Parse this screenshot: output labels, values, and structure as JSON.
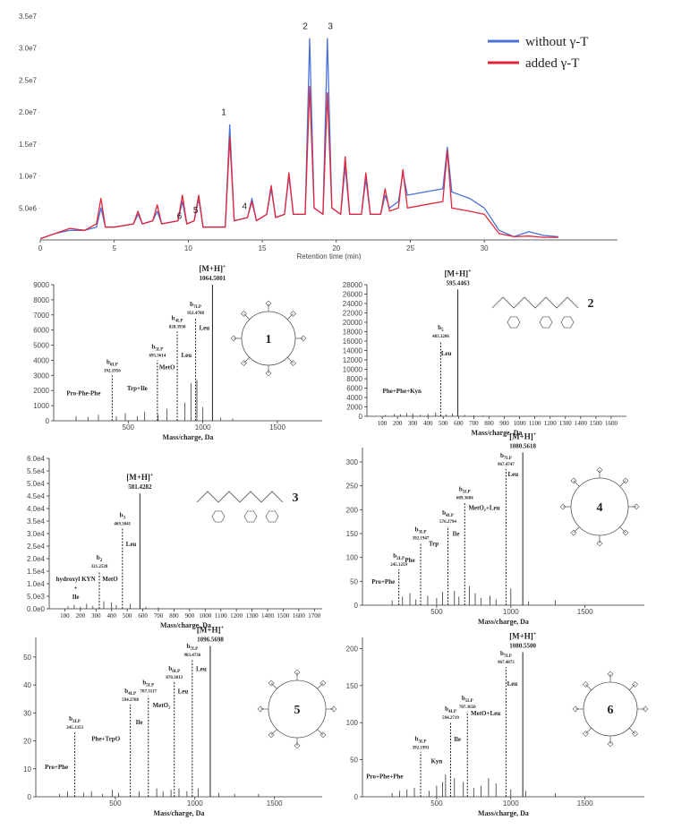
{
  "chart_data": [
    {
      "type": "line",
      "x_label": "Retention time (min)",
      "legend": "upper right",
      "xlim": [
        0,
        39
      ],
      "xticks": [
        0,
        5,
        10,
        15,
        20,
        25,
        30
      ],
      "ylim": [
        0,
        35000000.0
      ],
      "yticks": [
        {
          "value": 5000000.0,
          "label": "5.0e6"
        },
        {
          "value": 10000000.0,
          "label": "1.0e7"
        },
        {
          "value": 15000000.0,
          "label": "1.5e7"
        },
        {
          "value": 20000000.0,
          "label": "2.0e7"
        },
        {
          "value": 25000000.0,
          "label": "2.5e7"
        },
        {
          "value": 30000000.0,
          "label": "3.0e7"
        },
        {
          "value": 35000000.0,
          "label": "3.5e7"
        }
      ],
      "x": [
        0,
        1,
        2,
        3,
        3.8,
        4.1,
        4.4,
        5,
        6.3,
        6.6,
        6.9,
        7.6,
        7.9,
        8.2,
        9.3,
        9.6,
        9.9,
        10.4,
        10.7,
        11,
        12.5,
        12.8,
        13.1,
        14,
        14.3,
        14.6,
        15.3,
        15.6,
        15.9,
        16.5,
        16.8,
        17.1,
        17.9,
        18.2,
        18.5,
        19.1,
        19.4,
        19.7,
        20.3,
        20.6,
        20.9,
        21.7,
        22,
        22.3,
        23,
        23.3,
        23.6,
        24.2,
        24.5,
        24.8,
        26,
        27.2,
        27.5,
        27.8,
        29,
        30,
        31,
        32,
        33,
        34,
        35
      ],
      "series": [
        {
          "name": "without γ-T",
          "color": "#4a72d6",
          "values": [
            200000.0,
            1000000.0,
            1500000.0,
            1500000.0,
            2000000.0,
            5000000.0,
            2000000.0,
            2000000.0,
            2500000.0,
            4000000.0,
            2500000.0,
            3000000.0,
            4500000.0,
            2500000.0,
            3000000.0,
            6000000.0,
            2500000.0,
            3000000.0,
            6500000.0,
            2000000.0,
            2000000.0,
            18000000.0,
            3000000.0,
            3500000.0,
            6500000.0,
            3000000.0,
            4000000.0,
            8000000.0,
            3500000.0,
            4000000.0,
            10000000.0,
            4000000.0,
            4000000.0,
            31500000.0,
            5000000.0,
            4000000.0,
            31500000.0,
            5000000.0,
            4000000.0,
            11500000.0,
            4000000.0,
            4000000.0,
            9500000.0,
            4000000.0,
            4000000.0,
            7000000.0,
            5000000.0,
            6000000.0,
            10500000.0,
            7000000.0,
            7500000.0,
            8000000.0,
            14500000.0,
            7500000.0,
            6500000.0,
            5000000.0,
            1500000.0,
            500000.0,
            1300000.0,
            700000.0,
            500000.0
          ]
        },
        {
          "name": "added γ-T",
          "color": "#e2263a",
          "values": [
            200000.0,
            1000000.0,
            1800000.0,
            1500000.0,
            2500000.0,
            6500000.0,
            2000000.0,
            2000000.0,
            2500000.0,
            4500000.0,
            2500000.0,
            3000000.0,
            5500000.0,
            2500000.0,
            3000000.0,
            7000000.0,
            2500000.0,
            3000000.0,
            7000000.0,
            2000000.0,
            2000000.0,
            16000000.0,
            3000000.0,
            3500000.0,
            6000000.0,
            3000000.0,
            4000000.0,
            8500000.0,
            3500000.0,
            4000000.0,
            10500000.0,
            4000000.0,
            4000000.0,
            24000000.0,
            5000000.0,
            4000000.0,
            23000000.0,
            5000000.0,
            4000000.0,
            13000000.0,
            4000000.0,
            4000000.0,
            10500000.0,
            4000000.0,
            4000000.0,
            8000000.0,
            4500000.0,
            5000000.0,
            11000000.0,
            5000000.0,
            5500000.0,
            6000000.0,
            14000000.0,
            5000000.0,
            4500000.0,
            4000000.0,
            1000000.0,
            500000.0,
            600000.0,
            400000.0,
            400000.0
          ]
        }
      ],
      "peak_labels": [
        {
          "label": "1",
          "x": 12.4,
          "y": 19500000.0
        },
        {
          "label": "2",
          "x": 17.9,
          "y": 33000000.0
        },
        {
          "label": "3",
          "x": 19.6,
          "y": 33000000.0
        },
        {
          "label": "4",
          "x": 13.8,
          "y": 4800000.0
        },
        {
          "label": "5",
          "x": 10.5,
          "y": 4200000.0
        },
        {
          "label": "6",
          "x": 9.4,
          "y": 3300000.0
        }
      ]
    },
    {
      "type": "stem",
      "compound": "1",
      "x_label": "Mass/charge, Da",
      "xlim": [
        0,
        1800
      ],
      "xticks": [
        500,
        1000,
        1500
      ],
      "ylim": [
        0,
        9000
      ],
      "yticks": [
        0,
        1000,
        2000,
        3000,
        4000,
        5000,
        6000,
        7000,
        8000,
        9000
      ],
      "x": [
        150,
        230,
        300,
        420,
        480,
        560,
        610,
        700,
        760,
        880,
        920,
        960,
        1000,
        1120,
        1200
      ],
      "values": [
        300,
        250,
        400,
        300,
        500,
        300,
        600,
        400,
        800,
        1200,
        2500,
        2700,
        900,
        200,
        150
      ],
      "peaks": [
        {
          "ion": "b",
          "sub": "6LP",
          "mz": "392.1956",
          "x": 392.1956,
          "y": 3000
        },
        {
          "ion": "b",
          "sub": "5LP",
          "mz": "695.3614",
          "x": 695.3614,
          "y": 4000
        },
        {
          "ion": "b",
          "sub": "4LP",
          "mz": "828.3930",
          "x": 828.393,
          "y": 5900
        },
        {
          "ion": "b",
          "sub": "7LP",
          "mz": "951.4788",
          "x": 951.4788,
          "y": 6800
        },
        {
          "ion": "[M+H]",
          "sup": "+",
          "mz": "1064.5001",
          "x": 1064.5001,
          "y": 9000
        }
      ],
      "fragments": [
        {
          "text": "Pro-Phe-Phe",
          "x": 200,
          "y": 1700
        },
        {
          "text": "Trp+Ile",
          "x": 560,
          "y": 2000
        },
        {
          "text": "MetO",
          "x": 760,
          "y": 3400
        },
        {
          "text": "Leu",
          "x": 890,
          "y": 4200
        },
        {
          "text": "Leu",
          "x": 1010,
          "y": 6000
        }
      ]
    },
    {
      "type": "stem",
      "compound": "2",
      "x_label": "Mass/charge, Da",
      "xlim": [
        0,
        1700
      ],
      "xticks": [
        100,
        200,
        300,
        400,
        500,
        600,
        700,
        800,
        900,
        1000,
        1100,
        1200,
        1300,
        1400,
        1500,
        1600
      ],
      "ylim": [
        0,
        28000
      ],
      "yticks": [
        0,
        2000,
        4000,
        6000,
        8000,
        10000,
        12000,
        14000,
        16000,
        18000,
        20000,
        22000,
        24000,
        26000,
        28000
      ],
      "x": [
        120,
        180,
        220,
        260,
        300,
        350,
        400,
        450,
        520,
        560,
        640,
        700,
        760
      ],
      "values": [
        300,
        500,
        400,
        700,
        600,
        300,
        500,
        800,
        400,
        600,
        300,
        200,
        150
      ],
      "peaks": [
        {
          "ion": "b",
          "sub": "5",
          "mz": "483.3206",
          "x": 483.3206,
          "y": 16000
        },
        {
          "ion": "[M+H]",
          "sup": "+",
          "mz": "595.4463",
          "x": 595.4463,
          "y": 27000
        }
      ],
      "fragments": [
        {
          "text": "Leu",
          "x": 520,
          "y": 13000
        },
        {
          "text": "Phe+Phe+Kyn",
          "x": 230,
          "y": 5000
        }
      ]
    },
    {
      "type": "stem",
      "compound": "3",
      "x_label": "Mass/charge, Da",
      "xlim": [
        0,
        1750
      ],
      "xticks": [
        100,
        200,
        300,
        400,
        500,
        600,
        700,
        800,
        900,
        1000,
        1100,
        1200,
        1300,
        1400,
        1500,
        1600,
        1700
      ],
      "ylim": [
        0,
        60000
      ],
      "yticks": [
        {
          "value": 0,
          "label": "0.0e0"
        },
        {
          "value": 5000,
          "label": "5.0e3"
        },
        {
          "value": 10000,
          "label": "1.0e4"
        },
        {
          "value": 15000,
          "label": "1.5e4"
        },
        {
          "value": 20000,
          "label": "2.0e4"
        },
        {
          "value": 25000,
          "label": "2.5e4"
        },
        {
          "value": 30000,
          "label": "3.0e4"
        },
        {
          "value": 35000,
          "label": "3.5e4"
        },
        {
          "value": 40000,
          "label": "4.0e4"
        },
        {
          "value": 45000,
          "label": "4.5e4"
        },
        {
          "value": 50000,
          "label": "5.0e4"
        },
        {
          "value": 55000,
          "label": "5.5e4"
        },
        {
          "value": 60000,
          "label": "6.0e4"
        }
      ],
      "x": [
        120,
        160,
        200,
        240,
        280,
        350,
        400,
        430,
        520,
        620,
        700
      ],
      "values": [
        1000,
        1500,
        800,
        2000,
        1200,
        3000,
        2500,
        1500,
        2000,
        800,
        500
      ],
      "peaks": [
        {
          "ion": "b",
          "sub": "2",
          "mz": "321.2528",
          "x": 321.2528,
          "y": 15000
        },
        {
          "ion": "b",
          "sub": "3",
          "mz": "469.3041",
          "x": 469.3041,
          "y": 32000
        },
        {
          "ion": "[M+H]",
          "sup": "+",
          "mz": "581.4282",
          "x": 581.4282,
          "y": 46000
        }
      ],
      "fragments": [
        {
          "text": "hydroxyl KYN",
          "x": 170,
          "y": 11000
        },
        {
          "text": "+",
          "x": 170,
          "y": 7500
        },
        {
          "text": "Ile",
          "x": 170,
          "y": 4000
        },
        {
          "text": "MetO",
          "x": 390,
          "y": 11000
        },
        {
          "text": "Leu",
          "x": 525,
          "y": 25000
        }
      ]
    },
    {
      "type": "stem",
      "compound": "4",
      "x_label": "Mass/charge, Da",
      "xlim": [
        0,
        1900
      ],
      "xticks": [
        500,
        1000,
        1500
      ],
      "ylim": [
        0,
        330
      ],
      "yticks": [
        0,
        50,
        100,
        150,
        200,
        250,
        300
      ],
      "x": [
        200,
        270,
        320,
        360,
        440,
        500,
        540,
        620,
        650,
        720,
        760,
        800,
        860,
        900,
        1000,
        1120,
        1300
      ],
      "values": [
        10,
        18,
        25,
        12,
        20,
        15,
        28,
        30,
        18,
        40,
        25,
        15,
        20,
        12,
        35,
        8,
        10
      ],
      "peaks": [
        {
          "ion": "b",
          "sub": "2LP",
          "mz": "245.1259",
          "x": 245.1259,
          "y": 75
        },
        {
          "ion": "b",
          "sub": "3LP",
          "mz": "392.1947",
          "x": 392.1947,
          "y": 130
        },
        {
          "ion": "b",
          "sub": "4LP",
          "mz": "576.2794",
          "x": 576.2794,
          "y": 165
        },
        {
          "ion": "b",
          "sub": "5LP",
          "mz": "689.3684",
          "x": 689.3684,
          "y": 215
        },
        {
          "ion": "b",
          "sub": "7LP",
          "mz": "967.4747",
          "x": 967.4747,
          "y": 285
        },
        {
          "ion": "[M+H]",
          "sup": "+",
          "mz": "1080.5618",
          "x": 1080.5618,
          "y": 320
        }
      ],
      "fragments": [
        {
          "text": "Pro+Phe",
          "x": 140,
          "y": 45
        },
        {
          "text": "Phe",
          "x": 320,
          "y": 90
        },
        {
          "text": "Trp",
          "x": 480,
          "y": 125
        },
        {
          "text": "Ile",
          "x": 630,
          "y": 145
        },
        {
          "text": "MetO₂+Leu",
          "x": 820,
          "y": 200
        },
        {
          "text": "Leu",
          "x": 1015,
          "y": 270
        }
      ]
    },
    {
      "type": "stem",
      "compound": "5",
      "x_label": "Mass/charge, Da",
      "xlim": [
        0,
        1800
      ],
      "xticks": [
        500,
        1000,
        1500
      ],
      "ylim": [
        0,
        57
      ],
      "yticks": [
        0,
        10,
        20,
        30,
        40,
        50
      ],
      "x": [
        150,
        200,
        300,
        350,
        420,
        480,
        520,
        650,
        760,
        800,
        850,
        900,
        950,
        1020,
        1150,
        1250,
        1400
      ],
      "values": [
        1,
        2,
        1.5,
        2,
        1,
        2.5,
        1.5,
        2,
        3,
        2,
        2.5,
        3,
        2,
        3,
        1.5,
        1,
        1
      ],
      "peaks": [
        {
          "ion": "b",
          "sub": "2LP",
          "mz": "245.1353",
          "x": 245.1353,
          "y": 23
        },
        {
          "ion": "b",
          "sub": "4LP",
          "mz": "594.2788",
          "x": 594.2788,
          "y": 33
        },
        {
          "ion": "b",
          "sub": "5LP",
          "mz": "707.3117",
          "x": 707.3117,
          "y": 36
        },
        {
          "ion": "b",
          "sub": "6LP",
          "mz": "870.3813",
          "x": 870.3813,
          "y": 41
        },
        {
          "ion": "b",
          "sub": "7LP",
          "mz": "983.4736",
          "x": 983.4736,
          "y": 49
        },
        {
          "ion": "[M+H]",
          "sup": "+",
          "mz": "1096.5698",
          "x": 1096.5698,
          "y": 54
        }
      ],
      "fragments": [
        {
          "text": "Pro+Phe",
          "x": 130,
          "y": 10
        },
        {
          "text": "Phe+TrpO",
          "x": 440,
          "y": 20
        },
        {
          "text": "Ile",
          "x": 650,
          "y": 26
        },
        {
          "text": "MetO₂",
          "x": 790,
          "y": 32
        },
        {
          "text": "Leu",
          "x": 925,
          "y": 37
        },
        {
          "text": "Leu",
          "x": 1040,
          "y": 45
        }
      ]
    },
    {
      "type": "stem",
      "compound": "6",
      "x_label": "Mass/charge, Da",
      "xlim": [
        0,
        1900
      ],
      "xticks": [
        500,
        1000,
        1500
      ],
      "ylim": [
        0,
        215
      ],
      "yticks": [
        0,
        50,
        100,
        150,
        200
      ],
      "x": [
        200,
        250,
        300,
        350,
        450,
        500,
        540,
        560,
        620,
        680,
        750,
        800,
        850,
        900,
        1000,
        1100,
        1300
      ],
      "values": [
        5,
        8,
        10,
        12,
        8,
        15,
        20,
        30,
        25,
        20,
        12,
        15,
        25,
        18,
        10,
        8,
        5
      ],
      "peaks": [
        {
          "ion": "b",
          "sub": "3LP",
          "mz": "392.1993",
          "x": 392.1993,
          "y": 60
        },
        {
          "ion": "b",
          "sub": "4LP",
          "mz": "594.2719",
          "x": 594.2719,
          "y": 100
        },
        {
          "ion": "b",
          "sub": "5LP",
          "mz": "707.3650",
          "x": 707.365,
          "y": 115
        },
        {
          "ion": "b",
          "sub": "7LP",
          "mz": "967.4873",
          "x": 967.4873,
          "y": 175
        },
        {
          "ion": "[M+H]",
          "sup": "+",
          "mz": "1080.5500",
          "x": 1080.55,
          "y": 195
        }
      ],
      "fragments": [
        {
          "text": "Pro+Phe+Phe",
          "x": 150,
          "y": 25
        },
        {
          "text": "Kyn",
          "x": 500,
          "y": 45
        },
        {
          "text": "Ile",
          "x": 640,
          "y": 75
        },
        {
          "text": "MetO+Leu",
          "x": 830,
          "y": 110
        },
        {
          "text": "Leu",
          "x": 1010,
          "y": 150
        }
      ]
    }
  ]
}
